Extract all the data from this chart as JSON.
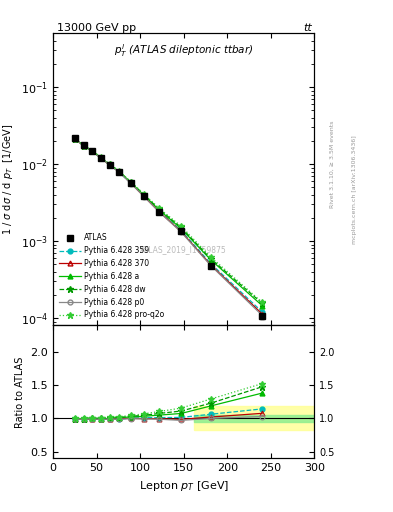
{
  "title_top": "13000 GeV pp",
  "title_top_right": "tt",
  "plot_title": "$p_T^l$ (ATLAS dileptonic ttbar)",
  "watermark": "ATLAS_2019_I1759875",
  "ylabel_main": "1 / $\\sigma$ d$\\sigma$ / d $p_T$  [1/GeV]",
  "ylabel_ratio": "Ratio to ATLAS",
  "xlabel": "Lepton $p_T$ [GeV]",
  "right_label": "mcplots.cern.ch [arXiv:1306.3436]",
  "right_label2": "Rivet 3.1.10, ≥ 3.5M events",
  "xlim": [
    0,
    300
  ],
  "ylim_main": [
    8e-05,
    0.5
  ],
  "ylim_ratio": [
    0.4,
    2.4
  ],
  "ratio_yticks": [
    0.5,
    1.0,
    1.5,
    2.0
  ],
  "pt_edges": [
    20,
    30,
    40,
    50,
    60,
    70,
    82,
    97,
    112,
    132,
    162,
    200,
    280
  ],
  "atlas_values": [
    0.0215,
    0.0175,
    0.0148,
    0.0121,
    0.0098,
    0.0079,
    0.0056,
    0.0038,
    0.0024,
    0.00135,
    0.00048,
    0.000105
  ],
  "atlas_yerr_lo": [
    0.0006,
    0.0005,
    0.0004,
    0.0003,
    0.0002,
    0.0002,
    0.0001,
    0.0001,
    5e-05,
    4e-05,
    1.5e-05,
    8e-06
  ],
  "atlas_yerr_hi": [
    0.0006,
    0.0005,
    0.0004,
    0.0003,
    0.0002,
    0.0002,
    0.0001,
    0.0001,
    5e-05,
    4e-05,
    1.5e-05,
    8e-06
  ],
  "py359_values": [
    0.0213,
    0.0173,
    0.0147,
    0.0119,
    0.0097,
    0.0078,
    0.00562,
    0.00384,
    0.00243,
    0.00137,
    0.00051,
    0.00012
  ],
  "py370_values": [
    0.0213,
    0.0173,
    0.0147,
    0.0119,
    0.0097,
    0.0079,
    0.0056,
    0.00379,
    0.00239,
    0.00133,
    0.00049,
    0.000113
  ],
  "pya_values": [
    0.0214,
    0.0174,
    0.0148,
    0.012,
    0.0098,
    0.008,
    0.00572,
    0.00392,
    0.00252,
    0.00145,
    0.00057,
    0.000145
  ],
  "pydw_values": [
    0.0214,
    0.0174,
    0.0149,
    0.0121,
    0.0099,
    0.008,
    0.00578,
    0.00398,
    0.00258,
    0.0015,
    0.00059,
    0.000155
  ],
  "pyp0_values": [
    0.0213,
    0.0173,
    0.0147,
    0.0119,
    0.0097,
    0.0078,
    0.00558,
    0.00377,
    0.00237,
    0.00131,
    0.00048,
    0.000108
  ],
  "pyq2o_values": [
    0.0215,
    0.0175,
    0.0149,
    0.0122,
    0.01,
    0.0081,
    0.00585,
    0.00406,
    0.00265,
    0.00156,
    0.00062,
    0.00016
  ],
  "atlas_color": "#000000",
  "py359_color": "#00BBBB",
  "py370_color": "#BB0000",
  "pya_color": "#00BB00",
  "pydw_color": "#009900",
  "pyp0_color": "#888888",
  "pyq2o_color": "#33CC33",
  "green_band_lo": 0.95,
  "green_band_hi": 1.05,
  "yellow_band_lo": 0.82,
  "yellow_band_hi": 1.18,
  "band_xstart": 162
}
